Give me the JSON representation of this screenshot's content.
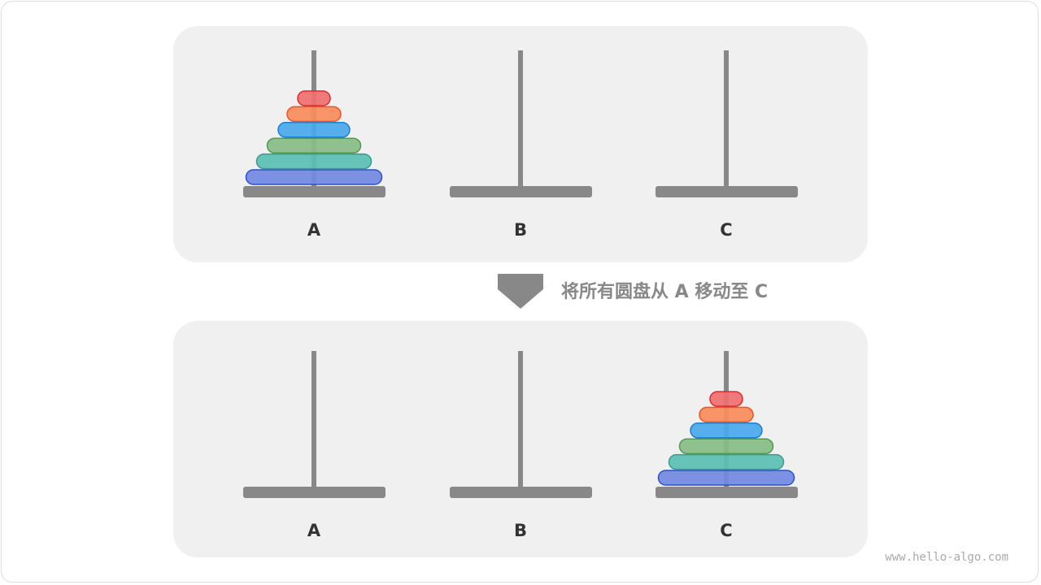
{
  "rod_labels": [
    "A",
    "B",
    "C"
  ],
  "caption": "将所有圆盘从 A 移动至 C",
  "watermark": "www.hello-algo.com",
  "states": [
    {
      "name": "before",
      "disks_on_rod": "A"
    },
    {
      "name": "after",
      "disks_on_rod": "C"
    }
  ],
  "disk_count": 6,
  "colors": {
    "panel": "#f0f0f0",
    "rod": "#888888",
    "disks": [
      {
        "fill": "#7289e0",
        "stroke": "#2a4fd0"
      },
      {
        "fill": "#5abfb3",
        "stroke": "#3a9a8f"
      },
      {
        "fill": "#88bc84",
        "stroke": "#4f9a55"
      },
      {
        "fill": "#4aa8ec",
        "stroke": "#1d7fd1"
      },
      {
        "fill": "#fa8c5c",
        "stroke": "#f4511e"
      },
      {
        "fill": "#f07070",
        "stroke": "#e0282e"
      }
    ]
  }
}
